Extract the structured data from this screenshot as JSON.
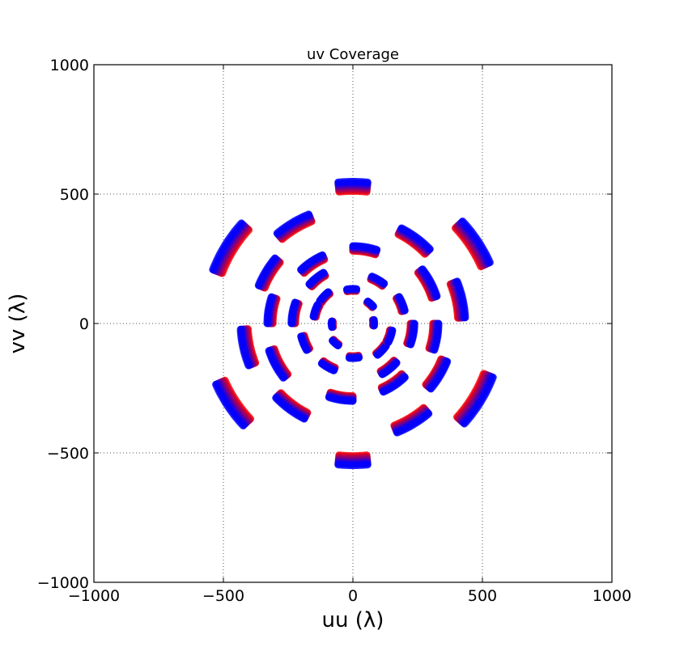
{
  "chart_data": {
    "type": "scatter",
    "title": "uv Coverage",
    "xlabel": "uu (λ)",
    "ylabel": "vv (λ)",
    "xlim": [
      -1000,
      1000
    ],
    "ylim": [
      -1000,
      1000
    ],
    "xticks": [
      -1000,
      -500,
      0,
      500,
      1000
    ],
    "yticks": [
      -1000,
      -500,
      0,
      500,
      1000
    ],
    "xtick_labels": [
      "−1000",
      "−500",
      "0",
      "500",
      "1000"
    ],
    "ytick_labels": [
      "−1000",
      "−500",
      "0",
      "500",
      "1000"
    ],
    "grid": true,
    "legend": "none",
    "colors": {
      "low_frequency": "#ff0000",
      "high_frequency": "#0000ff"
    },
    "tracks": [
      {
        "r": 530,
        "a1": 84,
        "a2": 96
      },
      {
        "r": 530,
        "a1": 264,
        "a2": 276
      },
      {
        "r": 560,
        "a1": 138,
        "a2": 159
      },
      {
        "r": 560,
        "a1": 318,
        "a2": 339
      },
      {
        "r": 560,
        "a1": 24,
        "a2": 43
      },
      {
        "r": 560,
        "a1": 204,
        "a2": 223
      },
      {
        "r": 440,
        "a1": 112,
        "a2": 130
      },
      {
        "r": 440,
        "a1": 292,
        "a2": 310
      },
      {
        "r": 400,
        "a1": 44,
        "a2": 63
      },
      {
        "r": 400,
        "a1": 224,
        "a2": 243
      },
      {
        "r": 420,
        "a1": 3,
        "a2": 22
      },
      {
        "r": 420,
        "a1": 183,
        "a2": 202
      },
      {
        "r": 280,
        "a1": 114,
        "a2": 134
      },
      {
        "r": 280,
        "a1": 294,
        "a2": 314
      },
      {
        "r": 290,
        "a1": 72,
        "a2": 90
      },
      {
        "r": 290,
        "a1": 252,
        "a2": 270
      },
      {
        "r": 380,
        "a1": 140,
        "a2": 158
      },
      {
        "r": 380,
        "a1": 320,
        "a2": 338
      },
      {
        "r": 330,
        "a1": 18,
        "a2": 38
      },
      {
        "r": 330,
        "a1": 198,
        "a2": 218
      },
      {
        "r": 320,
        "a1": 162,
        "a2": 180
      },
      {
        "r": 320,
        "a1": 342,
        "a2": 360
      },
      {
        "r": 220,
        "a1": 120,
        "a2": 138
      },
      {
        "r": 220,
        "a1": 300,
        "a2": 318
      },
      {
        "r": 190,
        "a1": 52,
        "a2": 68
      },
      {
        "r": 190,
        "a1": 232,
        "a2": 248
      },
      {
        "r": 200,
        "a1": 14,
        "a2": 30
      },
      {
        "r": 200,
        "a1": 194,
        "a2": 210
      },
      {
        "r": 230,
        "a1": 160,
        "a2": 180
      },
      {
        "r": 230,
        "a1": 340,
        "a2": 360
      },
      {
        "r": 150,
        "a1": 128,
        "a2": 146
      },
      {
        "r": 150,
        "a1": 308,
        "a2": 326
      },
      {
        "r": 130,
        "a1": 84,
        "a2": 100
      },
      {
        "r": 130,
        "a1": 264,
        "a2": 280
      },
      {
        "r": 150,
        "a1": 152,
        "a2": 170
      },
      {
        "r": 150,
        "a1": 332,
        "a2": 350
      },
      {
        "r": 100,
        "a1": 40,
        "a2": 56
      },
      {
        "r": 100,
        "a1": 220,
        "a2": 236
      },
      {
        "r": 80,
        "a1": 174,
        "a2": 190
      },
      {
        "r": 80,
        "a1": 354,
        "a2": 370
      }
    ]
  }
}
